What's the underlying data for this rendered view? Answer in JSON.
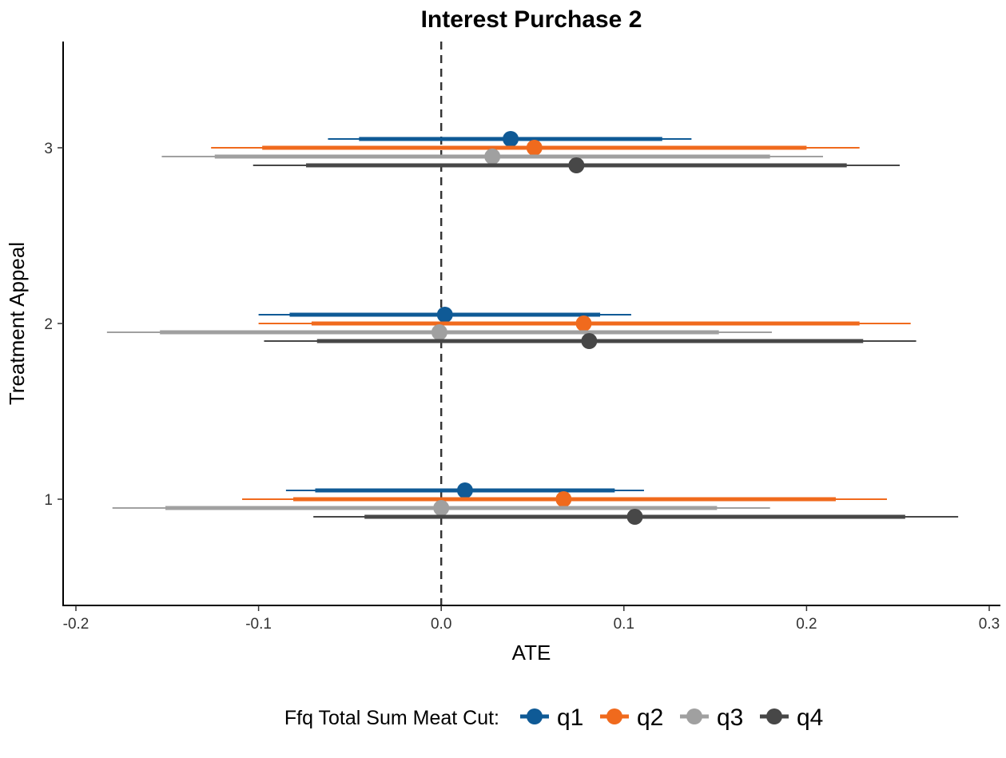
{
  "chart_data": {
    "type": "scatter",
    "subtype": "forest-plot",
    "title": "Interest Purchase 2",
    "xlabel": "ATE",
    "ylabel": "Treatment Appeal",
    "xlim": [
      -0.2,
      0.3
    ],
    "x_ticks": [
      "-0.2",
      "-0.1",
      "0.0",
      "0.1",
      "0.2",
      "0.3"
    ],
    "y_ticks": [
      "1",
      "2",
      "3"
    ],
    "reference_line": {
      "x": 0,
      "style": "dashed"
    },
    "grid": false,
    "legend": {
      "title": "Ffq Total Sum Meat Cut:",
      "position": "bottom"
    },
    "series": [
      {
        "name": "q1",
        "color": "#0F5A96",
        "points": [
          {
            "treatment": 3,
            "ate": 0.038,
            "ci90": [
              -0.045,
              0.121
            ],
            "ci95": [
              -0.062,
              0.137
            ]
          },
          {
            "treatment": 2,
            "ate": 0.002,
            "ci90": [
              -0.083,
              0.087
            ],
            "ci95": [
              -0.1,
              0.104
            ]
          },
          {
            "treatment": 1,
            "ate": 0.013,
            "ci90": [
              -0.069,
              0.095
            ],
            "ci95": [
              -0.085,
              0.111
            ]
          }
        ]
      },
      {
        "name": "q2",
        "color": "#F06A1D",
        "points": [
          {
            "treatment": 3,
            "ate": 0.051,
            "ci90": [
              -0.098,
              0.2
            ],
            "ci95": [
              -0.126,
              0.229
            ]
          },
          {
            "treatment": 2,
            "ate": 0.078,
            "ci90": [
              -0.071,
              0.229
            ],
            "ci95": [
              -0.1,
              0.257
            ]
          },
          {
            "treatment": 1,
            "ate": 0.067,
            "ci90": [
              -0.081,
              0.216
            ],
            "ci95": [
              -0.109,
              0.244
            ]
          }
        ]
      },
      {
        "name": "q3",
        "color": "#A0A0A0",
        "points": [
          {
            "treatment": 3,
            "ate": 0.028,
            "ci90": [
              -0.124,
              0.18
            ],
            "ci95": [
              -0.153,
              0.209
            ]
          },
          {
            "treatment": 2,
            "ate": -0.001,
            "ci90": [
              -0.154,
              0.152
            ],
            "ci95": [
              -0.183,
              0.181
            ]
          },
          {
            "treatment": 1,
            "ate": 0.0,
            "ci90": [
              -0.151,
              0.151
            ],
            "ci95": [
              -0.18,
              0.18
            ]
          }
        ]
      },
      {
        "name": "q4",
        "color": "#474747",
        "points": [
          {
            "treatment": 3,
            "ate": 0.074,
            "ci90": [
              -0.074,
              0.222
            ],
            "ci95": [
              -0.103,
              0.251
            ]
          },
          {
            "treatment": 2,
            "ate": 0.081,
            "ci90": [
              -0.068,
              0.231
            ],
            "ci95": [
              -0.097,
              0.26
            ]
          },
          {
            "treatment": 1,
            "ate": 0.106,
            "ci90": [
              -0.042,
              0.254
            ],
            "ci95": [
              -0.07,
              0.283
            ]
          }
        ]
      }
    ]
  }
}
